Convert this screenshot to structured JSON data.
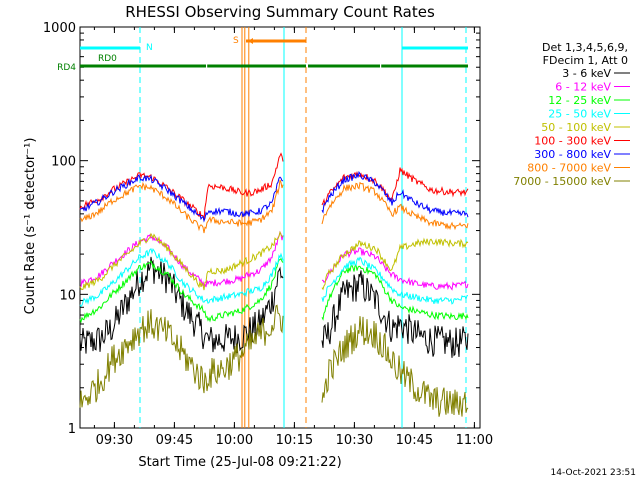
{
  "chart_data": {
    "type": "line",
    "title": "RHESSI Observing Summary Count Rates",
    "xlabel": "Start Time (25-Jul-08 09:21:22)",
    "ylabel": "Count Rate (s⁻¹ detector⁻¹)",
    "yscale": "log",
    "ylim": [
      1,
      1000
    ],
    "xlim_minutes": [
      0,
      100
    ],
    "x_ticks": [
      {
        "label": "09:30",
        "t": 8.6
      },
      {
        "label": "09:45",
        "t": 23.6
      },
      {
        "label": "10:00",
        "t": 38.6
      },
      {
        "label": "10:15",
        "t": 53.6
      },
      {
        "label": "10:30",
        "t": 68.6
      },
      {
        "label": "10:45",
        "t": 83.6
      },
      {
        "label": "11:00",
        "t": 98.6
      }
    ],
    "y_ticks": [
      {
        "label": "1",
        "v": 1
      },
      {
        "label": "10",
        "v": 10
      },
      {
        "label": "100",
        "v": 100
      },
      {
        "label": "1000",
        "v": 1000
      }
    ],
    "legend_header": [
      "Det 1,3,4,5,6,9,",
      "FDecim 1, Att 0"
    ],
    "legend_position": "right",
    "data_gaps": [
      [
        50.8,
        60.5
      ]
    ],
    "series": [
      {
        "name": "3 - 6 keV",
        "color": "#000000",
        "x": [
          0,
          5,
          8,
          15,
          18,
          22,
          26,
          31,
          32,
          36,
          40,
          42,
          45,
          48,
          50,
          60.5,
          62,
          66,
          70,
          74,
          76,
          78,
          80,
          84,
          88,
          94,
          97
        ],
        "y": [
          4.2,
          4.6,
          5.6,
          13,
          16,
          13,
          8,
          5.0,
          4.5,
          4.6,
          4.8,
          5.2,
          6,
          9,
          15,
          4.3,
          5,
          10,
          12,
          9,
          7,
          5.5,
          6.0,
          5,
          4.5,
          4.3,
          4.5
        ]
      },
      {
        "name": "6 - 12 keV",
        "color": "#ff00ff",
        "x": [
          0,
          5,
          8,
          15,
          18,
          22,
          26,
          31,
          32,
          36,
          40,
          42,
          45,
          48,
          50,
          60.5,
          62,
          66,
          70,
          74,
          76,
          78,
          80,
          84,
          88,
          94,
          97
        ],
        "y": [
          12,
          14,
          17,
          25,
          27,
          22,
          16,
          12,
          12,
          12.5,
          13,
          14,
          15,
          19,
          28,
          12,
          14,
          20,
          21,
          19,
          16,
          14,
          13,
          12,
          11.5,
          11.5,
          12
        ]
      },
      {
        "name": "12 - 25 keV",
        "color": "#00ff00",
        "x": [
          0,
          5,
          8,
          15,
          18,
          22,
          26,
          31,
          32,
          36,
          40,
          42,
          45,
          48,
          50,
          60.5,
          62,
          66,
          70,
          74,
          76,
          78,
          80,
          84,
          88,
          94,
          97
        ],
        "y": [
          6.5,
          8,
          10,
          16,
          17,
          14,
          10,
          7.5,
          6.5,
          7,
          7.5,
          8,
          9,
          12,
          18,
          6.5,
          9,
          15,
          16,
          14,
          11,
          9,
          8,
          7.5,
          7,
          6.8,
          7
        ]
      },
      {
        "name": "25 - 50 keV",
        "color": "#00ffff",
        "x": [
          0,
          5,
          8,
          15,
          18,
          22,
          26,
          31,
          32,
          36,
          40,
          42,
          45,
          48,
          50,
          60.5,
          62,
          66,
          70,
          74,
          76,
          78,
          80,
          84,
          88,
          94,
          97
        ],
        "y": [
          8.5,
          10,
          12,
          19,
          21,
          17,
          12,
          9,
          9,
          9.5,
          10,
          10.5,
          11,
          14,
          20,
          9,
          11,
          16,
          18,
          15,
          13,
          11,
          10,
          9.5,
          9,
          9,
          9.5
        ]
      },
      {
        "name": "50 - 100 keV",
        "color": "#c0c000",
        "x": [
          0,
          5,
          8,
          15,
          18,
          22,
          26,
          31,
          32,
          36,
          40,
          42,
          45,
          48,
          50,
          60.5,
          62,
          66,
          70,
          74,
          76,
          78,
          80,
          84,
          88,
          94,
          97
        ],
        "y": [
          11,
          13,
          16,
          24,
          28,
          22,
          16,
          11,
          15,
          15,
          17,
          18,
          20,
          23,
          28,
          11,
          14,
          20,
          24,
          22,
          18,
          15,
          22,
          24,
          25,
          24,
          24
        ]
      },
      {
        "name": "100 - 300 keV",
        "color": "#ff0000",
        "x": [
          0,
          5,
          8,
          15,
          18,
          22,
          26,
          31,
          32,
          36,
          40,
          42,
          45,
          48,
          50,
          60.5,
          62,
          66,
          70,
          74,
          76,
          78,
          80,
          84,
          88,
          94,
          97
        ],
        "y": [
          45,
          52,
          60,
          78,
          75,
          62,
          50,
          38,
          65,
          63,
          58,
          57,
          60,
          68,
          110,
          45,
          55,
          75,
          80,
          70,
          60,
          50,
          85,
          70,
          60,
          58,
          58
        ]
      },
      {
        "name": "300 - 800 keV",
        "color": "#0000ff",
        "x": [
          0,
          5,
          8,
          15,
          18,
          22,
          26,
          31,
          32,
          36,
          40,
          42,
          45,
          48,
          50,
          60.5,
          62,
          66,
          70,
          74,
          76,
          78,
          80,
          84,
          88,
          94,
          97
        ],
        "y": [
          42,
          50,
          58,
          75,
          72,
          60,
          48,
          36,
          42,
          42,
          40,
          40,
          42,
          48,
          75,
          42,
          52,
          72,
          78,
          68,
          58,
          48,
          58,
          48,
          42,
          40,
          40
        ]
      },
      {
        "name": "800 - 7000 keV",
        "color": "#ff8000",
        "x": [
          0,
          5,
          8,
          15,
          18,
          22,
          26,
          31,
          32,
          36,
          40,
          42,
          45,
          48,
          50,
          60.5,
          62,
          66,
          70,
          74,
          76,
          78,
          80,
          84,
          88,
          94,
          97
        ],
        "y": [
          35,
          42,
          50,
          65,
          62,
          52,
          40,
          30,
          36,
          35,
          34,
          34,
          36,
          42,
          68,
          35,
          44,
          62,
          65,
          58,
          48,
          40,
          45,
          38,
          34,
          32,
          33
        ]
      },
      {
        "name": "7000 - 15000 keV",
        "color": "#808000",
        "x": [
          0,
          5,
          8,
          15,
          18,
          22,
          26,
          31,
          32,
          36,
          40,
          42,
          45,
          48,
          50,
          60.5,
          62,
          66,
          70,
          74,
          76,
          78,
          80,
          84,
          88,
          94,
          97
        ],
        "y": [
          1.5,
          2.2,
          3.2,
          5.5,
          6,
          5,
          3.5,
          2.2,
          2.5,
          2.8,
          3.5,
          4,
          5,
          6,
          7,
          1.5,
          2.5,
          4,
          5.5,
          5,
          4,
          3.2,
          2.6,
          2.0,
          1.6,
          1.5,
          1.6
        ]
      }
    ],
    "flag_bars": [
      {
        "name": "RD4",
        "label": "RD4",
        "color": "#008000",
        "row": 2,
        "segments": [
          [
            0,
            31.5
          ],
          [
            31.8,
            56.5
          ],
          [
            57,
            75
          ],
          [
            75.3,
            97
          ]
        ]
      },
      {
        "name": "RD0",
        "label": "RD0",
        "color": "#008000",
        "row": 1,
        "segments": [
          [
            2,
            3
          ]
        ]
      },
      {
        "name": "N",
        "label": "N",
        "color": "#00ffff",
        "row": 1,
        "segments": [
          [
            0,
            15
          ],
          [
            80.5,
            97
          ]
        ]
      },
      {
        "name": "S",
        "label": "S",
        "color": "#ff8000",
        "row": 0,
        "segments": [
          [
            41.5,
            56.5
          ]
        ]
      }
    ],
    "vlines": [
      {
        "t": 15,
        "color": "#00ffff",
        "dash": true
      },
      {
        "t": 80.5,
        "color": "#00ffff",
        "dash": false
      },
      {
        "t": 96.5,
        "color": "#00ffff",
        "dash": true
      },
      {
        "t": 40.5,
        "color": "#ff8000",
        "dash": false
      },
      {
        "t": 41.2,
        "color": "#ff8000",
        "dash": false
      },
      {
        "t": 42.2,
        "color": "#ff8000",
        "dash": false
      },
      {
        "t": 56.5,
        "color": "#ff8000",
        "dash": true
      },
      {
        "t": 51,
        "color": "#00ffff",
        "dash": false
      }
    ],
    "footer_date": "14-Oct-2021 23:51"
  }
}
